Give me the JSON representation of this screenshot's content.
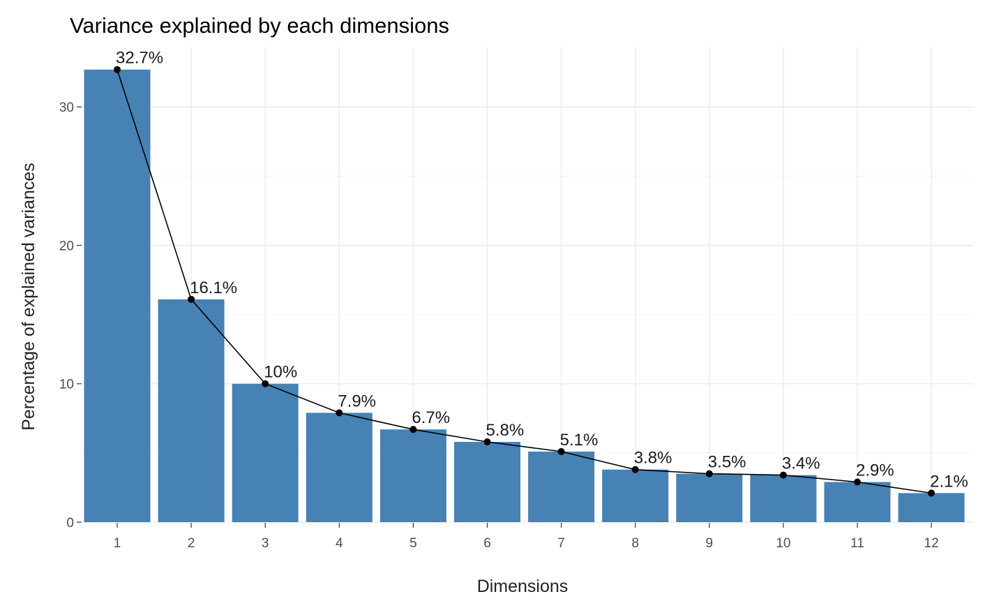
{
  "chart_data": {
    "type": "bar",
    "title": "Variance explained by each dimensions",
    "xlabel": "Dimensions",
    "ylabel": "Percentage of explained variances",
    "categories": [
      "1",
      "2",
      "3",
      "4",
      "5",
      "6",
      "7",
      "8",
      "9",
      "10",
      "11",
      "12"
    ],
    "values": [
      32.7,
      16.1,
      10.0,
      7.9,
      6.7,
      5.8,
      5.1,
      3.8,
      3.5,
      3.4,
      2.9,
      2.1
    ],
    "data_labels": [
      "32.7%",
      "16.1%",
      "10%",
      "7.9%",
      "6.7%",
      "5.8%",
      "5.1%",
      "3.8%",
      "3.5%",
      "3.4%",
      "2.9%",
      "2.1%"
    ],
    "y_ticks": [
      0,
      10,
      20,
      30
    ],
    "ylim": [
      0,
      34.3
    ],
    "overlay_line": true,
    "grid": true,
    "legend": "none",
    "colors": {
      "bar": "#4682B4",
      "line": "#000000",
      "point": "#000000"
    }
  }
}
